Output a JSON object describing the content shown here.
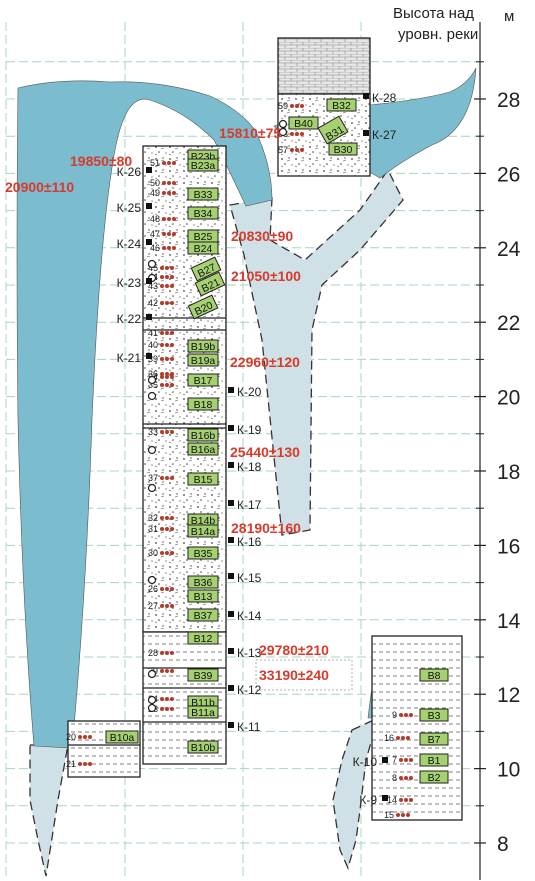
{
  "axis": {
    "title_line1": "Высота над",
    "title_line2": "уровн. реки",
    "unit": "м",
    "ticks": [
      28,
      26,
      24,
      22,
      20,
      18,
      16,
      14,
      12,
      10,
      8
    ],
    "range": [
      7,
      30
    ]
  },
  "dates": [
    {
      "id": "d15810",
      "text": "15810±75"
    },
    {
      "id": "d19850",
      "text": "19850±80"
    },
    {
      "id": "d20900",
      "text": "20900±110"
    },
    {
      "id": "d20830",
      "text": "20830±90"
    },
    {
      "id": "d21050",
      "text": "21050±100"
    },
    {
      "id": "d22960",
      "text": "22960±120"
    },
    {
      "id": "d25440",
      "text": "25440±130"
    },
    {
      "id": "d28190",
      "text": "28190±160"
    },
    {
      "id": "d29780",
      "text": "29780±210"
    },
    {
      "id": "d33190",
      "text": "33190±240"
    }
  ],
  "core_labels": [
    {
      "id": "K-28",
      "text": "К-28"
    },
    {
      "id": "K-27",
      "text": "К-27"
    },
    {
      "id": "K-26",
      "text": "К-26"
    },
    {
      "id": "K-25",
      "text": "К-25"
    },
    {
      "id": "K-24",
      "text": "К-24"
    },
    {
      "id": "K-23",
      "text": "К-23"
    },
    {
      "id": "K-22",
      "text": "К-22"
    },
    {
      "id": "K-21",
      "text": "К-21"
    },
    {
      "id": "K-20",
      "text": "К-20"
    },
    {
      "id": "K-19",
      "text": "К-19"
    },
    {
      "id": "K-18",
      "text": "К-18"
    },
    {
      "id": "K-17",
      "text": "К-17"
    },
    {
      "id": "K-16",
      "text": "К-16"
    },
    {
      "id": "K-15",
      "text": "К-15"
    },
    {
      "id": "K-14",
      "text": "К-14"
    },
    {
      "id": "K-13",
      "text": "К-13"
    },
    {
      "id": "K-12",
      "text": "К-12"
    },
    {
      "id": "K-11",
      "text": "К-11"
    },
    {
      "id": "K-10",
      "text": "К-10"
    },
    {
      "id": "K-9",
      "text": "К-9"
    }
  ],
  "layers": [
    {
      "id": "B32",
      "text": "В32"
    },
    {
      "id": "B40",
      "text": "В40"
    },
    {
      "id": "B31",
      "text": "В31"
    },
    {
      "id": "B30",
      "text": "В30"
    },
    {
      "id": "B23b",
      "text": "В23b"
    },
    {
      "id": "B23a",
      "text": "В23a"
    },
    {
      "id": "B33",
      "text": "В33"
    },
    {
      "id": "B34",
      "text": "В34"
    },
    {
      "id": "B25",
      "text": "В25"
    },
    {
      "id": "B24",
      "text": "В24"
    },
    {
      "id": "B27",
      "text": "В27"
    },
    {
      "id": "B21",
      "text": "В21"
    },
    {
      "id": "B20",
      "text": "В20"
    },
    {
      "id": "B19b",
      "text": "В19b"
    },
    {
      "id": "B19a",
      "text": "В19a"
    },
    {
      "id": "B17",
      "text": "В17"
    },
    {
      "id": "B18",
      "text": "В18"
    },
    {
      "id": "B16b",
      "text": "В16b"
    },
    {
      "id": "B16a",
      "text": "В16a"
    },
    {
      "id": "B15",
      "text": "В15"
    },
    {
      "id": "B14b",
      "text": "В14b"
    },
    {
      "id": "B14a",
      "text": "В14a"
    },
    {
      "id": "B35",
      "text": "В35"
    },
    {
      "id": "B36",
      "text": "В36"
    },
    {
      "id": "B13",
      "text": "В13"
    },
    {
      "id": "B37",
      "text": "В37"
    },
    {
      "id": "B12",
      "text": "В12"
    },
    {
      "id": "B39",
      "text": "В39"
    },
    {
      "id": "B11b",
      "text": "В11b"
    },
    {
      "id": "B11a",
      "text": "В11a"
    },
    {
      "id": "B10b",
      "text": "В10b"
    },
    {
      "id": "B10a",
      "text": "В10a"
    },
    {
      "id": "B8",
      "text": "В8"
    },
    {
      "id": "B3",
      "text": "В3"
    },
    {
      "id": "B7",
      "text": "В7"
    },
    {
      "id": "B1",
      "text": "В1"
    },
    {
      "id": "B2",
      "text": "В2"
    }
  ],
  "samples": [
    {
      "id": "s59",
      "text": "59"
    },
    {
      "id": "s58",
      "text": "58"
    },
    {
      "id": "s57",
      "text": "57"
    },
    {
      "id": "s51",
      "text": "51"
    },
    {
      "id": "s50",
      "text": "50"
    },
    {
      "id": "s49",
      "text": "49"
    },
    {
      "id": "s48",
      "text": "48"
    },
    {
      "id": "s47",
      "text": "47"
    },
    {
      "id": "s46",
      "text": "46"
    },
    {
      "id": "s45",
      "text": "45"
    },
    {
      "id": "s44",
      "text": "44"
    },
    {
      "id": "s43",
      "text": "43"
    },
    {
      "id": "s42",
      "text": "42"
    },
    {
      "id": "s41",
      "text": "41"
    },
    {
      "id": "s40",
      "text": "40"
    },
    {
      "id": "s39",
      "text": "39"
    },
    {
      "id": "s34",
      "text": "34"
    },
    {
      "id": "s36",
      "text": "36"
    },
    {
      "id": "s35",
      "text": "35"
    },
    {
      "id": "s33",
      "text": "33"
    },
    {
      "id": "s37",
      "text": "37"
    },
    {
      "id": "s32",
      "text": "32"
    },
    {
      "id": "s31",
      "text": "31"
    },
    {
      "id": "s30",
      "text": "30"
    },
    {
      "id": "s26",
      "text": "26"
    },
    {
      "id": "s27",
      "text": "27"
    },
    {
      "id": "s28",
      "text": "28"
    },
    {
      "id": "s29",
      "text": "29"
    },
    {
      "id": "s24",
      "text": "24"
    },
    {
      "id": "s23",
      "text": "23"
    },
    {
      "id": "s20",
      "text": "20"
    },
    {
      "id": "s21",
      "text": "21"
    },
    {
      "id": "s9",
      "text": "9"
    },
    {
      "id": "s16",
      "text": "16"
    },
    {
      "id": "s7",
      "text": "7"
    },
    {
      "id": "s8",
      "text": "8"
    },
    {
      "id": "s14",
      "text": "14"
    },
    {
      "id": "s15",
      "text": "15"
    }
  ],
  "colors": {
    "ice_wedge": "#7cbccf",
    "cast_fill": "#cfe0e6",
    "layer_box": "#a5d170",
    "date_red": "#d83a2c",
    "sample_red": "#b53a2a",
    "grid": "#a7d4c3"
  }
}
